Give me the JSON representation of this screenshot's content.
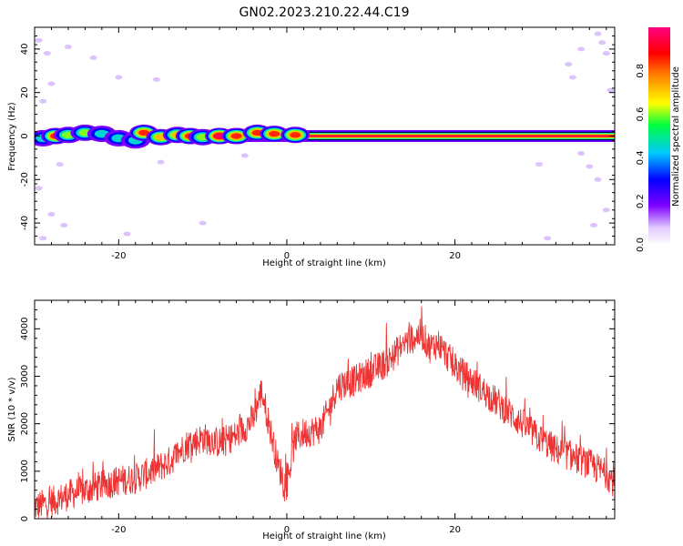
{
  "figure": {
    "title": "GN02.2023.210.22.44.C19"
  },
  "chart_data": [
    {
      "type": "heatmap",
      "title": "",
      "xlabel": "Height of straight line (km)",
      "ylabel": "Frequency (Hz)",
      "xlim": [
        -30,
        39
      ],
      "ylim": [
        -50,
        50
      ],
      "xticks": [
        -20,
        0,
        20
      ],
      "yticks": [
        -40,
        -20,
        0,
        20,
        40
      ],
      "colormap": "rainbow (violet to magenta)",
      "colorbar": {
        "label": "Normalized spectral amplitude",
        "range": [
          0,
          1
        ],
        "ticks": [
          "0.0",
          "0.2",
          "0.4",
          "0.6",
          "0.8"
        ]
      },
      "grid": false,
      "blobs": [
        {
          "x": -29,
          "y": -1,
          "amp": 0.55
        },
        {
          "x": -27.5,
          "y": 0,
          "amp": 0.9
        },
        {
          "x": -26,
          "y": 0.5,
          "amp": 0.7
        },
        {
          "x": -24,
          "y": 1.5,
          "amp": 0.6
        },
        {
          "x": -22,
          "y": 1,
          "amp": 0.55
        },
        {
          "x": -20,
          "y": -1,
          "amp": 0.5
        },
        {
          "x": -18,
          "y": -2,
          "amp": 0.45
        },
        {
          "x": -17,
          "y": 1.5,
          "amp": 0.85
        },
        {
          "x": -15,
          "y": -0.5,
          "amp": 0.75
        },
        {
          "x": -13,
          "y": 0.5,
          "amp": 0.8
        },
        {
          "x": -11.5,
          "y": 0,
          "amp": 0.9
        },
        {
          "x": -10,
          "y": -0.5,
          "amp": 0.7
        },
        {
          "x": -8,
          "y": 0,
          "amp": 0.95
        },
        {
          "x": -6,
          "y": 0,
          "amp": 0.9
        },
        {
          "x": -3.5,
          "y": 1.5,
          "amp": 0.85
        },
        {
          "x": -1.5,
          "y": 1,
          "amp": 0.9
        },
        {
          "x": 1,
          "y": 0.5,
          "amp": 0.85
        }
      ],
      "ridge": {
        "x_start": -9,
        "x_end": 39,
        "y": 0,
        "amp": 0.95
      },
      "scatter_noise": [
        {
          "x": -29.5,
          "y": 44
        },
        {
          "x": -28.5,
          "y": 38
        },
        {
          "x": -26,
          "y": 41
        },
        {
          "x": -23,
          "y": 36
        },
        {
          "x": -28,
          "y": 24
        },
        {
          "x": -29,
          "y": 16
        },
        {
          "x": -27,
          "y": -13
        },
        {
          "x": -29.5,
          "y": -24
        },
        {
          "x": -28,
          "y": -36
        },
        {
          "x": -26.5,
          "y": -41
        },
        {
          "x": -29,
          "y": -47
        },
        {
          "x": -20,
          "y": 27
        },
        {
          "x": -19,
          "y": -45
        },
        {
          "x": -15.5,
          "y": 26
        },
        {
          "x": -15,
          "y": -12
        },
        {
          "x": -10,
          "y": -40
        },
        {
          "x": -5,
          "y": -9
        },
        {
          "x": 33.5,
          "y": 33
        },
        {
          "x": 34,
          "y": 27
        },
        {
          "x": 35,
          "y": 40
        },
        {
          "x": 37,
          "y": 47
        },
        {
          "x": 37.5,
          "y": 43
        },
        {
          "x": 38,
          "y": 38
        },
        {
          "x": 35,
          "y": -8
        },
        {
          "x": 36,
          "y": -14
        },
        {
          "x": 37,
          "y": -20
        },
        {
          "x": 38,
          "y": -34
        },
        {
          "x": 36.5,
          "y": -41
        },
        {
          "x": 31,
          "y": -47
        },
        {
          "x": 38.5,
          "y": 21
        },
        {
          "x": 30,
          "y": -13
        }
      ]
    },
    {
      "type": "line",
      "title": "",
      "xlabel": "Height of straight line (km)",
      "ylabel": "SNR (10 * v/v)",
      "xlim": [
        -30,
        39
      ],
      "ylim": [
        0,
        4600
      ],
      "xticks": [
        -20,
        0,
        20
      ],
      "yticks": [
        0,
        1000,
        2000,
        3000,
        4000
      ],
      "grid": false,
      "series": [
        {
          "name": "",
          "color": "#ee3333",
          "x": [
            -30,
            -28,
            -26,
            -24,
            -22,
            -20,
            -18,
            -16,
            -14,
            -12,
            -10,
            -8,
            -6,
            -4,
            -3,
            -2,
            -1,
            0,
            1,
            2,
            4,
            5,
            6,
            8,
            10,
            12,
            14,
            16,
            17,
            18,
            20,
            22,
            24,
            26,
            28,
            30,
            32,
            34,
            36,
            38,
            39
          ],
          "y": [
            250,
            350,
            500,
            600,
            700,
            800,
            850,
            1000,
            1200,
            1550,
            1700,
            1600,
            1750,
            2100,
            2700,
            1900,
            1100,
            700,
            1700,
            1800,
            1900,
            2300,
            2800,
            2900,
            3100,
            3300,
            3700,
            3900,
            3600,
            3700,
            3200,
            2900,
            2600,
            2300,
            2000,
            1700,
            1450,
            1300,
            1150,
            950,
            750
          ],
          "noise_amplitude": 550
        }
      ]
    }
  ]
}
